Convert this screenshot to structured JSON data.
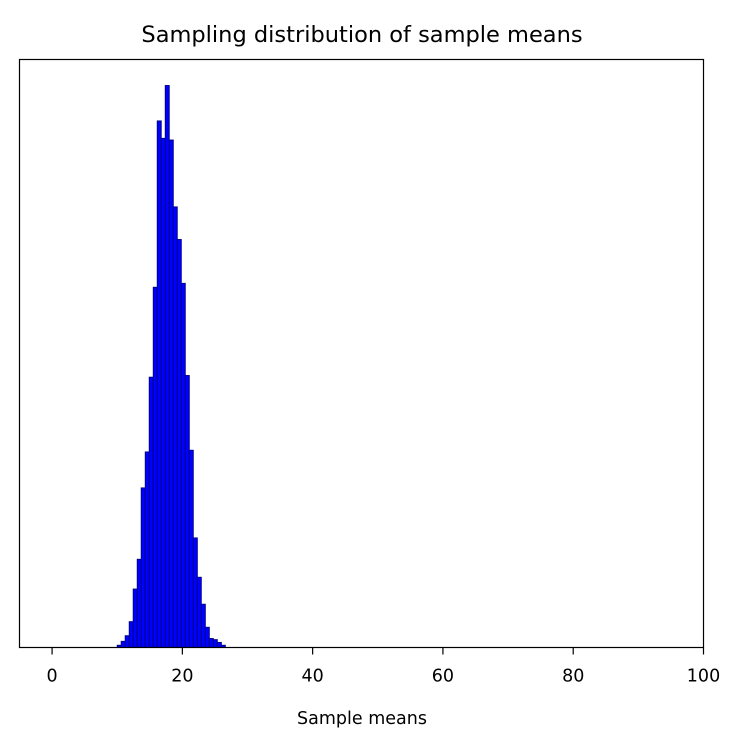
{
  "chart_data": {
    "type": "bar",
    "title": "Sampling distribution of sample means",
    "xlabel": "Sample means",
    "ylabel": "",
    "xlim": [
      -5,
      100
    ],
    "ylim": [
      0,
      1.0
    ],
    "x_ticks": [
      0,
      20,
      40,
      60,
      80,
      100
    ],
    "y_ticks_visible": false,
    "grid": false,
    "legend": "none",
    "bar_fill_color": "#0000ff",
    "bar_edge_color": "#000080",
    "bin_width": 0.615,
    "bins": [
      {
        "x": 10.3,
        "value": 0.004
      },
      {
        "x": 10.92,
        "value": 0.011
      },
      {
        "x": 11.53,
        "value": 0.021
      },
      {
        "x": 12.15,
        "value": 0.046
      },
      {
        "x": 12.76,
        "value": 0.104
      },
      {
        "x": 13.38,
        "value": 0.157
      },
      {
        "x": 13.99,
        "value": 0.284
      },
      {
        "x": 14.61,
        "value": 0.348
      },
      {
        "x": 15.22,
        "value": 0.481
      },
      {
        "x": 15.84,
        "value": 0.641
      },
      {
        "x": 16.45,
        "value": 0.937
      },
      {
        "x": 17.07,
        "value": 0.906
      },
      {
        "x": 17.68,
        "value": 1.0
      },
      {
        "x": 18.3,
        "value": 0.903
      },
      {
        "x": 18.91,
        "value": 0.784
      },
      {
        "x": 19.53,
        "value": 0.726
      },
      {
        "x": 20.14,
        "value": 0.648
      },
      {
        "x": 20.76,
        "value": 0.484
      },
      {
        "x": 21.37,
        "value": 0.351
      },
      {
        "x": 21.99,
        "value": 0.195
      },
      {
        "x": 22.6,
        "value": 0.125
      },
      {
        "x": 23.22,
        "value": 0.077
      },
      {
        "x": 23.83,
        "value": 0.036
      },
      {
        "x": 24.45,
        "value": 0.016
      },
      {
        "x": 25.06,
        "value": 0.014
      },
      {
        "x": 25.68,
        "value": 0.009
      },
      {
        "x": 26.29,
        "value": 0.004
      }
    ]
  }
}
